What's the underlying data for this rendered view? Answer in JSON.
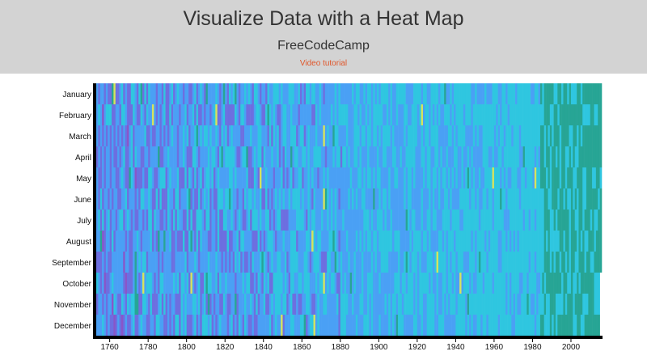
{
  "header": {
    "title": "Visualize Data with a Heat Map",
    "subtitle": "FreeCodeCamp",
    "link_label": "Video tutorial"
  },
  "chart_data": {
    "type": "heatmap",
    "title": "",
    "xlabel": "",
    "ylabel": "",
    "x_range": [
      1753,
      2015
    ],
    "months": [
      "January",
      "February",
      "March",
      "April",
      "May",
      "June",
      "July",
      "August",
      "September",
      "October",
      "November",
      "December"
    ],
    "x_ticks": [
      "1760",
      "1780",
      "1800",
      "1820",
      "1840",
      "1860",
      "1880",
      "1900",
      "1920",
      "1940",
      "1960",
      "1980",
      "2000"
    ],
    "color_scale_cold_to_warm": [
      "#8a55c8",
      "#6d6fe0",
      "#4aa0f5",
      "#2fc6e0",
      "#27a595",
      "#d6e35e",
      "#e0463a"
    ],
    "grid": false,
    "legend": "none"
  }
}
